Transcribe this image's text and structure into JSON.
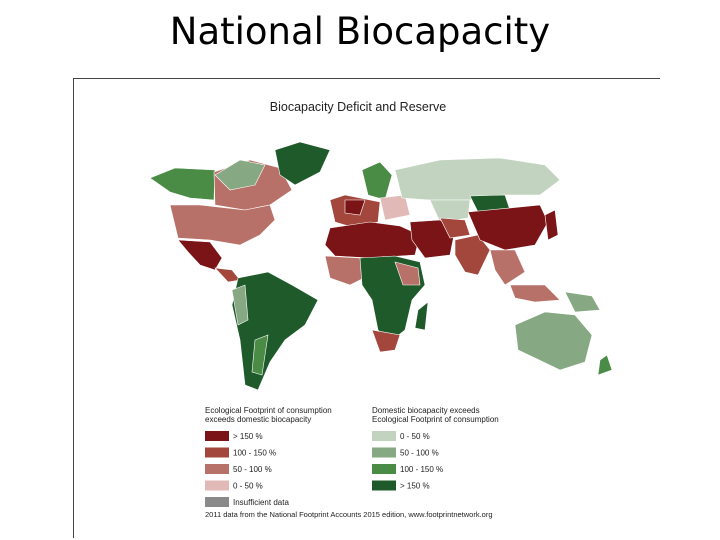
{
  "header": {
    "title": "National Biocapacity"
  },
  "map": {
    "title": "Biocapacity Deficit and Reserve"
  },
  "legend": {
    "deficit": {
      "heading": [
        "Ecological Footprint of consumption",
        "exceeds domestic biocapacity"
      ],
      "items": [
        {
          "label": "> 150 %",
          "color": "#7a1416"
        },
        {
          "label": "100 - 150 %",
          "color": "#a3473d"
        },
        {
          "label": "50 - 100 %",
          "color": "#b87168"
        },
        {
          "label": "0 - 50 %",
          "color": "#e1b9b6"
        },
        {
          "label": "Insufficient data",
          "color": "#8a8a8a"
        }
      ]
    },
    "reserve": {
      "heading": [
        "Domestic biocapacity exceeds",
        "Ecological Footprint of consumption"
      ],
      "items": [
        {
          "label": "0 - 50 %",
          "color": "#c2d4c0"
        },
        {
          "label": "50 - 100 %",
          "color": "#86a882"
        },
        {
          "label": "100 - 150 %",
          "color": "#4a8c46"
        },
        {
          "label": "> 150 %",
          "color": "#1f5a2b"
        }
      ]
    }
  },
  "footnote": "2011 data from the National Footprint Accounts 2015 edition, www.footprintnetwork.org"
}
